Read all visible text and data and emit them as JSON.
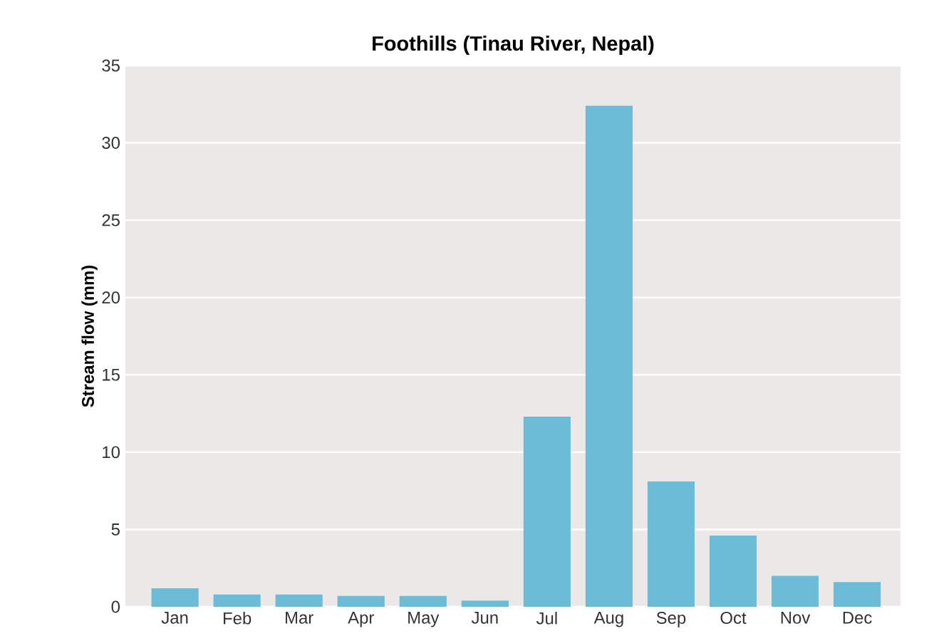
{
  "chart_data": {
    "type": "bar",
    "title": "Foothills (Tinau River, Nepal)",
    "ylabel": "Stream flow (mm)",
    "categories": [
      "Jan",
      "Feb",
      "Mar",
      "Apr",
      "May",
      "Jun",
      "Jul",
      "Aug",
      "Sep",
      "Oct",
      "Nov",
      "Dec"
    ],
    "values": [
      1.2,
      0.8,
      0.8,
      0.7,
      0.7,
      0.4,
      12.3,
      32.4,
      8.1,
      4.6,
      2.0,
      1.6
    ],
    "color": "#6cbcd8",
    "ylim": [
      0,
      35
    ],
    "yticks": [
      0,
      5,
      10,
      15,
      20,
      25,
      30,
      35
    ],
    "grid": "y"
  }
}
